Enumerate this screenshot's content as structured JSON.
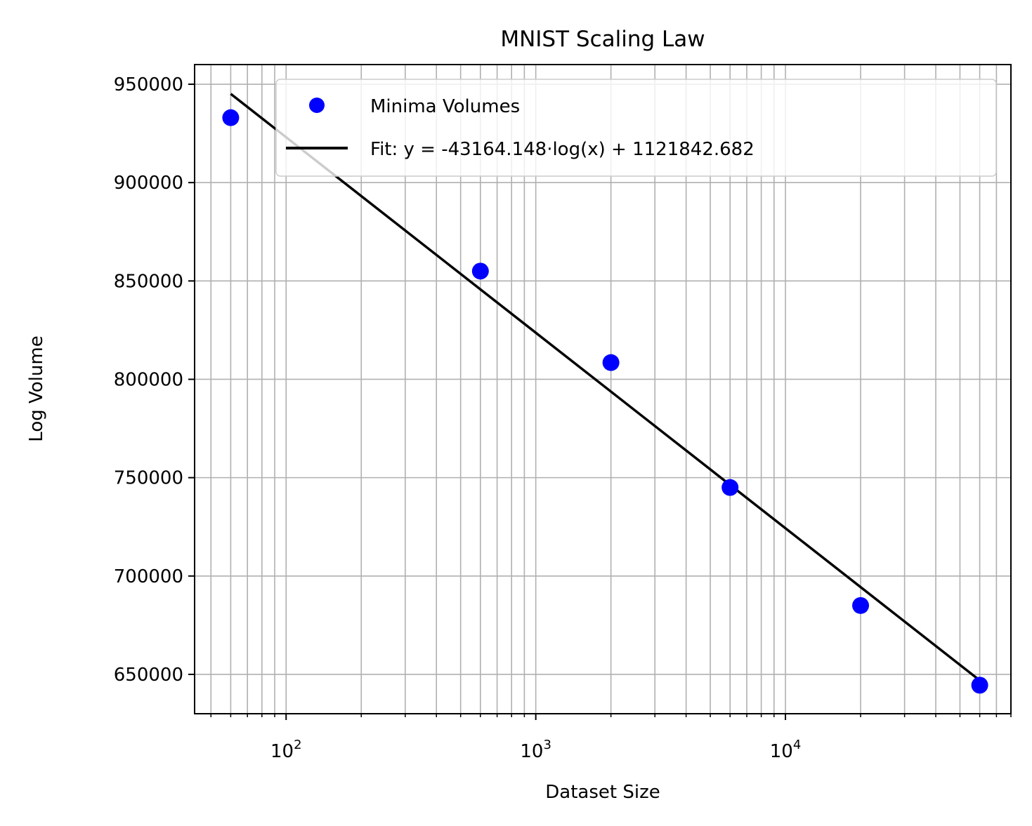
{
  "chart_data": {
    "type": "scatter",
    "title": "MNIST Scaling Law",
    "xlabel": "Dataset Size",
    "ylabel": "Log Volume",
    "xscale": "log",
    "xlim": [
      43,
      80000
    ],
    "ylim": [
      630000,
      960000
    ],
    "grid": true,
    "grid_minor": true,
    "legend_location": "top-right",
    "x_ticks": [
      {
        "base": "10",
        "exp": "2",
        "value": 100
      },
      {
        "base": "10",
        "exp": "3",
        "value": 1000
      },
      {
        "base": "10",
        "exp": "4",
        "value": 10000
      }
    ],
    "y_ticks": [
      {
        "label": "650000",
        "value": 650000
      },
      {
        "label": "700000",
        "value": 700000
      },
      {
        "label": "750000",
        "value": 750000
      },
      {
        "label": "800000",
        "value": 800000
      },
      {
        "label": "850000",
        "value": 850000
      },
      {
        "label": "900000",
        "value": 900000
      },
      {
        "label": "950000",
        "value": 950000
      }
    ],
    "series": [
      {
        "name": "Minima Volumes",
        "kind": "markers",
        "color": "#0000ff",
        "x": [
          60,
          600,
          2000,
          6000,
          20000,
          60000
        ],
        "y": [
          933000,
          855000,
          808500,
          745000,
          685000,
          644500
        ]
      },
      {
        "name": "Fit: y = -43164.148·log(x) + 1121842.682",
        "kind": "line",
        "color": "#000000",
        "slope": -43164.148,
        "intercept": 1121842.682,
        "x_range": [
          60,
          60000
        ]
      }
    ]
  }
}
